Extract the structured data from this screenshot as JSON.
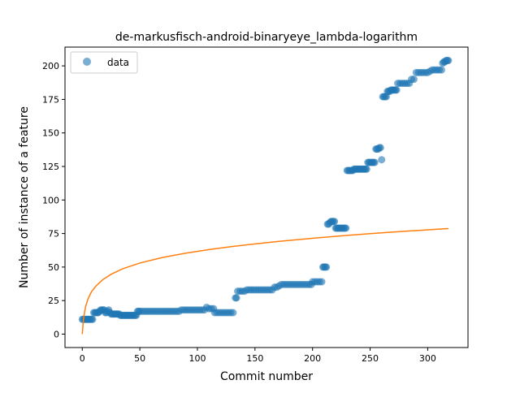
{
  "chart_data": {
    "type": "scatter",
    "title": "de-markusfisch-android-binaryeye_lambda-logarithm",
    "xlabel": "Commit number",
    "ylabel": "Number of instance of a feature",
    "xlim": [
      -15,
      335
    ],
    "ylim": [
      -10,
      214
    ],
    "xticks": [
      0,
      50,
      100,
      150,
      200,
      250,
      300
    ],
    "yticks": [
      0,
      25,
      50,
      75,
      100,
      125,
      150,
      175,
      200
    ],
    "legend": {
      "placement": "top-left",
      "entries": [
        "data"
      ]
    },
    "grid": false,
    "colors": {
      "data": "#1f77b4",
      "fit": "#ff7f0e"
    },
    "series": [
      {
        "name": "data",
        "kind": "scatter",
        "points": [
          [
            0,
            11
          ],
          [
            1,
            11
          ],
          [
            2,
            11
          ],
          [
            3,
            11
          ],
          [
            4,
            11
          ],
          [
            5,
            11
          ],
          [
            6,
            11
          ],
          [
            7,
            11
          ],
          [
            8,
            11
          ],
          [
            9,
            11
          ],
          [
            10,
            16
          ],
          [
            11,
            16
          ],
          [
            12,
            16
          ],
          [
            13,
            16
          ],
          [
            14,
            16
          ],
          [
            15,
            17
          ],
          [
            16,
            18
          ],
          [
            17,
            18
          ],
          [
            18,
            18
          ],
          [
            19,
            18
          ],
          [
            20,
            16
          ],
          [
            21,
            16
          ],
          [
            22,
            17
          ],
          [
            23,
            18
          ],
          [
            24,
            16
          ],
          [
            25,
            15
          ],
          [
            26,
            15
          ],
          [
            27,
            15
          ],
          [
            28,
            15
          ],
          [
            29,
            15
          ],
          [
            30,
            15
          ],
          [
            31,
            15
          ],
          [
            32,
            15
          ],
          [
            33,
            14
          ],
          [
            34,
            14
          ],
          [
            35,
            14
          ],
          [
            36,
            14
          ],
          [
            37,
            14
          ],
          [
            38,
            14
          ],
          [
            39,
            14
          ],
          [
            40,
            14
          ],
          [
            41,
            14
          ],
          [
            42,
            14
          ],
          [
            43,
            14
          ],
          [
            44,
            14
          ],
          [
            45,
            14
          ],
          [
            46,
            14
          ],
          [
            47,
            14
          ],
          [
            48,
            17
          ],
          [
            49,
            17
          ],
          [
            50,
            17
          ],
          [
            52,
            17
          ],
          [
            54,
            17
          ],
          [
            56,
            17
          ],
          [
            58,
            17
          ],
          [
            60,
            17
          ],
          [
            62,
            17
          ],
          [
            64,
            17
          ],
          [
            66,
            17
          ],
          [
            68,
            17
          ],
          [
            70,
            17
          ],
          [
            72,
            17
          ],
          [
            74,
            17
          ],
          [
            76,
            17
          ],
          [
            78,
            17
          ],
          [
            80,
            17
          ],
          [
            82,
            17
          ],
          [
            84,
            17
          ],
          [
            86,
            18
          ],
          [
            88,
            18
          ],
          [
            90,
            18
          ],
          [
            92,
            18
          ],
          [
            94,
            18
          ],
          [
            96,
            18
          ],
          [
            98,
            18
          ],
          [
            100,
            18
          ],
          [
            102,
            18
          ],
          [
            104,
            18
          ],
          [
            106,
            18
          ],
          [
            108,
            20
          ],
          [
            110,
            19
          ],
          [
            112,
            19
          ],
          [
            114,
            19
          ],
          [
            115,
            16
          ],
          [
            117,
            16
          ],
          [
            119,
            16
          ],
          [
            121,
            16
          ],
          [
            123,
            16
          ],
          [
            125,
            16
          ],
          [
            127,
            16
          ],
          [
            129,
            16
          ],
          [
            131,
            16
          ],
          [
            133,
            27
          ],
          [
            134,
            27
          ],
          [
            135,
            32
          ],
          [
            137,
            32
          ],
          [
            139,
            32
          ],
          [
            141,
            32
          ],
          [
            143,
            33
          ],
          [
            145,
            33
          ],
          [
            147,
            33
          ],
          [
            149,
            33
          ],
          [
            151,
            33
          ],
          [
            153,
            33
          ],
          [
            155,
            33
          ],
          [
            157,
            33
          ],
          [
            159,
            33
          ],
          [
            161,
            33
          ],
          [
            163,
            33
          ],
          [
            165,
            33
          ],
          [
            167,
            35
          ],
          [
            169,
            35
          ],
          [
            171,
            36
          ],
          [
            173,
            37
          ],
          [
            175,
            37
          ],
          [
            177,
            37
          ],
          [
            179,
            37
          ],
          [
            181,
            37
          ],
          [
            183,
            37
          ],
          [
            185,
            37
          ],
          [
            187,
            37
          ],
          [
            189,
            37
          ],
          [
            191,
            37
          ],
          [
            193,
            37
          ],
          [
            195,
            37
          ],
          [
            197,
            37
          ],
          [
            199,
            37
          ],
          [
            200,
            39
          ],
          [
            202,
            39
          ],
          [
            204,
            39
          ],
          [
            206,
            39
          ],
          [
            208,
            39
          ],
          [
            209,
            50
          ],
          [
            210,
            50
          ],
          [
            211,
            50
          ],
          [
            212,
            50
          ],
          [
            213,
            82
          ],
          [
            214,
            82
          ],
          [
            215,
            83
          ],
          [
            216,
            84
          ],
          [
            217,
            84
          ],
          [
            218,
            84
          ],
          [
            219,
            84
          ],
          [
            220,
            79
          ],
          [
            221,
            79
          ],
          [
            222,
            79
          ],
          [
            223,
            79
          ],
          [
            224,
            79
          ],
          [
            225,
            79
          ],
          [
            226,
            79
          ],
          [
            227,
            79
          ],
          [
            228,
            79
          ],
          [
            229,
            79
          ],
          [
            230,
            122
          ],
          [
            231,
            122
          ],
          [
            232,
            122
          ],
          [
            233,
            122
          ],
          [
            234,
            122
          ],
          [
            235,
            122
          ],
          [
            236,
            123
          ],
          [
            237,
            123
          ],
          [
            238,
            123
          ],
          [
            239,
            123
          ],
          [
            240,
            123
          ],
          [
            241,
            123
          ],
          [
            242,
            123
          ],
          [
            243,
            123
          ],
          [
            244,
            123
          ],
          [
            245,
            123
          ],
          [
            246,
            123
          ],
          [
            247,
            123
          ],
          [
            248,
            128
          ],
          [
            249,
            128
          ],
          [
            250,
            128
          ],
          [
            251,
            128
          ],
          [
            252,
            128
          ],
          [
            253,
            128
          ],
          [
            254,
            128
          ],
          [
            255,
            138
          ],
          [
            256,
            138
          ],
          [
            257,
            138
          ],
          [
            258,
            139
          ],
          [
            259,
            139
          ],
          [
            260,
            130
          ],
          [
            261,
            177
          ],
          [
            262,
            177
          ],
          [
            263,
            177
          ],
          [
            264,
            177
          ],
          [
            265,
            181
          ],
          [
            266,
            181
          ],
          [
            267,
            181
          ],
          [
            268,
            182
          ],
          [
            269,
            182
          ],
          [
            270,
            182
          ],
          [
            271,
            182
          ],
          [
            272,
            182
          ],
          [
            273,
            182
          ],
          [
            274,
            187
          ],
          [
            276,
            187
          ],
          [
            278,
            187
          ],
          [
            280,
            187
          ],
          [
            282,
            187
          ],
          [
            284,
            187
          ],
          [
            286,
            190
          ],
          [
            288,
            190
          ],
          [
            290,
            195
          ],
          [
            292,
            195
          ],
          [
            294,
            195
          ],
          [
            296,
            195
          ],
          [
            298,
            195
          ],
          [
            300,
            195
          ],
          [
            302,
            196
          ],
          [
            304,
            197
          ],
          [
            306,
            197
          ],
          [
            308,
            197
          ],
          [
            310,
            197
          ],
          [
            312,
            197
          ],
          [
            313,
            202
          ],
          [
            314,
            203
          ],
          [
            315,
            203
          ],
          [
            316,
            204
          ],
          [
            317,
            204
          ],
          [
            318,
            204
          ]
        ]
      },
      {
        "kind": "line",
        "function": "logarithm",
        "x_range": [
          0,
          318
        ],
        "points": [
          [
            0,
            0
          ],
          [
            1,
            10.5
          ],
          [
            2,
            16.5
          ],
          [
            3,
            20.8
          ],
          [
            5,
            26.3
          ],
          [
            8,
            31.6
          ],
          [
            12,
            36.0
          ],
          [
            18,
            40.7
          ],
          [
            25,
            44.6
          ],
          [
            35,
            48.7
          ],
          [
            50,
            53.0
          ],
          [
            70,
            57.2
          ],
          [
            90,
            60.4
          ],
          [
            110,
            63.0
          ],
          [
            130,
            65.3
          ],
          [
            150,
            67.3
          ],
          [
            170,
            69.1
          ],
          [
            190,
            70.7
          ],
          [
            210,
            72.2
          ],
          [
            230,
            73.6
          ],
          [
            250,
            74.9
          ],
          [
            270,
            76.1
          ],
          [
            290,
            77.2
          ],
          [
            310,
            78.3
          ],
          [
            318,
            78.7
          ]
        ]
      }
    ]
  }
}
